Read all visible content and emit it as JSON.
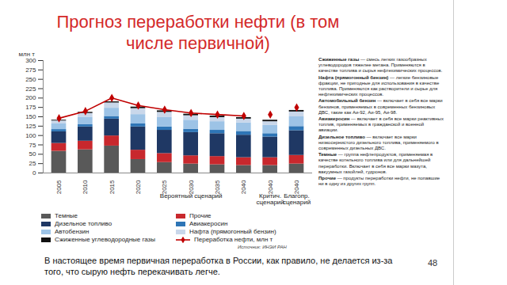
{
  "chart_data": {
    "type": "bar",
    "stacked": true,
    "title": "Прогноз переработки нефти (в том числе первичной)",
    "ylabel": "млн т",
    "categories": [
      "2005",
      "2010",
      "2015",
      "2020",
      "2025",
      "2030",
      "2035",
      "2040",
      "2040",
      "2040"
    ],
    "x_groups": [
      {
        "label": "Вероятный сценарий",
        "start": 3,
        "count": 5
      },
      {
        "label": "Критич. сценарий",
        "start": 8,
        "count": 1
      },
      {
        "label": "Благопр. сценарий",
        "start": 9,
        "count": 1
      }
    ],
    "ylim": [
      0,
      300
    ],
    "yticks": [
      0,
      25,
      50,
      75,
      100,
      125,
      150,
      175,
      200,
      225,
      250,
      275,
      300
    ],
    "grid": false,
    "data_labels": false,
    "legend": "bottom",
    "series": [
      {
        "name": "Темные",
        "color": "#595959",
        "values": [
          58,
          62,
          72,
          36,
          28,
          24,
          22,
          20,
          20,
          24
        ]
      },
      {
        "name": "Прочие",
        "color": "#c8282d",
        "values": [
          21,
          23,
          27,
          25,
          24,
          22,
          22,
          21,
          21,
          23
        ]
      },
      {
        "name": "Дизельное топливо",
        "color": "#1f3864",
        "values": [
          31,
          38,
          45,
          62,
          62,
          62,
          61,
          60,
          55,
          66
        ]
      },
      {
        "name": "Авиакеросин",
        "color": "#2e75b6",
        "values": [
          6,
          6,
          7,
          8,
          9,
          9,
          9,
          10,
          9,
          11
        ]
      },
      {
        "name": "Автобензин",
        "color": "#9dc3e6",
        "values": [
          15,
          20,
          22,
          25,
          25,
          24,
          23,
          23,
          22,
          26
        ]
      },
      {
        "name": "Нафта (прямогонный бензин)",
        "color": "#c9d7ea",
        "values": [
          8,
          10,
          14,
          16,
          14,
          12,
          11,
          10,
          10,
          13
        ]
      },
      {
        "name": "Сжиженные углеводородные газы",
        "color": "#111111",
        "values": [
          2,
          3,
          3,
          4,
          4,
          4,
          4,
          4,
          4,
          4
        ]
      },
      {
        "name": "Переработка нефти, млн т",
        "type": "line",
        "color": "#c00000",
        "marker": "diamond",
        "line_style": "solid",
        "values": [
          146,
          165,
          200,
          180,
          169,
          160,
          156,
          152,
          156,
          175
        ]
      }
    ]
  },
  "source": "Источник: ИНЭИ РАН",
  "glossary": [
    {
      "term": "Сжиженные газы",
      "text": " — смесь легких газообразных углеводородов тяжелее метана. Применяются в качестве топлива и сырья нефтехимических процессов."
    },
    {
      "term": "Нафта (прямогонный бензин)",
      "text": " — легкие бензиновые фракции, не пригодные для использования в качестве топлива. Применяются как растворители и сырье для нефтехимических процессов."
    },
    {
      "term": "Автомобильный бензин",
      "text": " — включает в себя все марки бензинов, применяемых в современных бензиновых ДВС, такие как Аи-92, Аи-95, Аи-98."
    },
    {
      "term": "Авиакеросин",
      "text": " — включает в себя все марки реактивных топлив, применяемых в гражданской и военной авиации."
    },
    {
      "term": "Дизельное топливо",
      "text": " — включает все марки низкосернистого дизельного топлива, применяемого в современных дизельных ДВС."
    },
    {
      "term": "Темные",
      "text": " — группа нефтепродуктов, применяемая в качестве котельного топлива или для дальнейшей переработки. Включает в себя все марки мазута, вакуумных газойлей, гудронов."
    },
    {
      "term": "Прочие",
      "text": " — продукты переработки нефти, не попавшие ни в одну из других групп."
    }
  ],
  "caption": "В настоящее время первичная переработка в России, как правило, не делается из-за того, что сырую нефть перекачивать легче.",
  "page": "48"
}
